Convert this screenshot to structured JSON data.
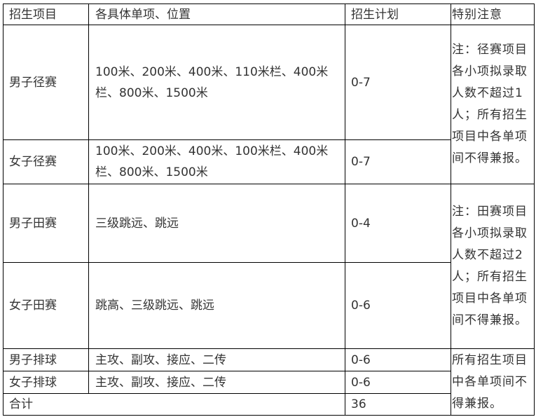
{
  "table": {
    "headers": [
      "招生项目",
      "各具体单项、位置",
      "招生计划",
      "特别注意"
    ],
    "rows": [
      {
        "project": "男子径赛",
        "items": "100米、200米、400米、110米栏、400米栏、800米、1500米",
        "plan": "0-7"
      },
      {
        "project": "女子径赛",
        "items": "100米、200米、400米、100米栏、400米栏、800米、1500米",
        "plan": "0-7"
      },
      {
        "project": "男子田赛",
        "items": "三级跳远、跳远",
        "plan": "0-4"
      },
      {
        "project": "女子田赛",
        "items": "跳高、三级跳远、跳远",
        "plan": "0-6"
      },
      {
        "project": "男子排球",
        "items": "主攻、副攻、接应、二传",
        "plan": "0-6"
      },
      {
        "project": "女子排球",
        "items": "主攻、副攻、接应、二传",
        "plan": "0-6"
      }
    ],
    "total": {
      "label": "合计",
      "plan": "36"
    },
    "notes": [
      [
        "注：径赛项目",
        "各小项拟录取",
        "人数不超过1",
        "人；所有招生",
        "项目中各单项",
        "间不得兼报。"
      ],
      [
        "注：田赛项目",
        "各小项拟录取",
        "人数不超过2",
        "人；所有招生",
        "项目中各单项",
        "间不得兼报。"
      ],
      [
        "所有招生项目",
        "中各单项间不",
        "得兼报。"
      ]
    ]
  }
}
